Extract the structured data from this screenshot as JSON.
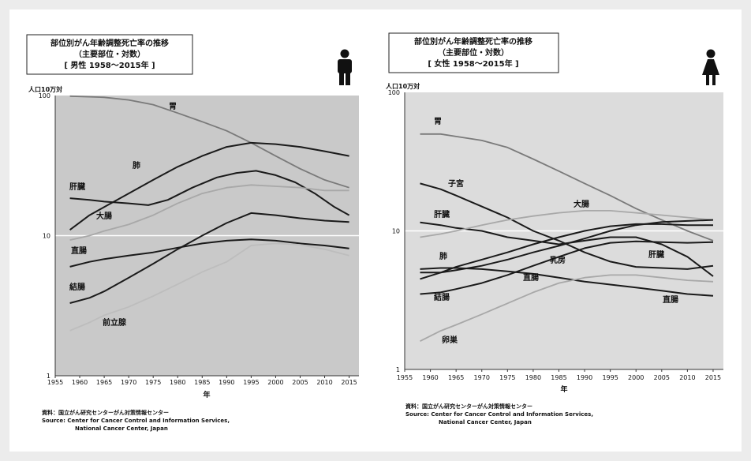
{
  "colors": {
    "plot_bg_male": "#c9c9c9",
    "plot_bg_female": "#dcdcdc",
    "dark": "#1a1a1a",
    "mid": "#7a7a7a",
    "light": "#a8a8a8",
    "pale": "#bdbdbd",
    "ref_line": "#ffffff"
  },
  "chart_data": [
    {
      "type": "line",
      "y_scale": "log",
      "title_lines": [
        "部位別がん年齢調整死亡率の推移",
        "（主要部位・対数）",
        "[ 男性 1958～2015年 ]"
      ],
      "ylabel": "人口10万対",
      "xlabel": "年",
      "xlim": [
        1955,
        2017
      ],
      "ylim": [
        1,
        100
      ],
      "xticks": [
        "1955",
        "1960",
        "1965",
        "1970",
        "1975",
        "1980",
        "1985",
        "1990",
        "1995",
        "2000",
        "2005",
        "2010",
        "2015"
      ],
      "yticks": [
        "1",
        "10",
        "100"
      ],
      "icon": "male-figure-icon",
      "source_lines": [
        "資料：国立がん研究センターがん対策情報センター",
        "Source: Center for Cancer Control and Information Services,",
        "National Cancer Center, Japan"
      ],
      "series": [
        {
          "name": "胃",
          "color": "#7a7a7a",
          "points": [
            [
              1958,
              99
            ],
            [
              1965,
              97
            ],
            [
              1970,
              93
            ],
            [
              1975,
              86
            ],
            [
              1980,
              75
            ],
            [
              1985,
              65
            ],
            [
              1990,
              56
            ],
            [
              1995,
              46
            ],
            [
              2000,
              37
            ],
            [
              2005,
              30
            ],
            [
              2010,
              25
            ],
            [
              2015,
              22
            ]
          ]
        },
        {
          "name": "肺",
          "color": "#1a1a1a",
          "points": [
            [
              1958,
              11
            ],
            [
              1962,
              14
            ],
            [
              1965,
              16
            ],
            [
              1970,
              20
            ],
            [
              1975,
              25
            ],
            [
              1980,
              31
            ],
            [
              1985,
              37
            ],
            [
              1990,
              43
            ],
            [
              1995,
              46
            ],
            [
              2000,
              45
            ],
            [
              2005,
              43
            ],
            [
              2010,
              40
            ],
            [
              2015,
              37
            ]
          ]
        },
        {
          "name": "肝臓",
          "color": "#1a1a1a",
          "points": [
            [
              1958,
              18.5
            ],
            [
              1962,
              18
            ],
            [
              1965,
              17.5
            ],
            [
              1970,
              17
            ],
            [
              1974,
              16.5
            ],
            [
              1978,
              18
            ],
            [
              1983,
              22
            ],
            [
              1988,
              26
            ],
            [
              1992,
              28
            ],
            [
              1996,
              29
            ],
            [
              2000,
              27
            ],
            [
              2004,
              24
            ],
            [
              2008,
              20
            ],
            [
              2012,
              16
            ],
            [
              2015,
              14
            ]
          ]
        },
        {
          "name": "大腸",
          "color": "#a8a8a8",
          "points": [
            [
              1958,
              9.3
            ],
            [
              1962,
              10
            ],
            [
              1965,
              10.8
            ],
            [
              1970,
              12
            ],
            [
              1975,
              14
            ],
            [
              1980,
              17
            ],
            [
              1985,
              20
            ],
            [
              1990,
              22
            ],
            [
              1995,
              23
            ],
            [
              2000,
              22.5
            ],
            [
              2005,
              22
            ],
            [
              2010,
              21
            ],
            [
              2015,
              21
            ]
          ]
        },
        {
          "name": "直腸",
          "color": "#1a1a1a",
          "points": [
            [
              1958,
              6
            ],
            [
              1962,
              6.5
            ],
            [
              1965,
              6.8
            ],
            [
              1970,
              7.2
            ],
            [
              1975,
              7.6
            ],
            [
              1980,
              8.2
            ],
            [
              1985,
              8.8
            ],
            [
              1990,
              9.2
            ],
            [
              1995,
              9.4
            ],
            [
              2000,
              9.2
            ],
            [
              2005,
              8.8
            ],
            [
              2010,
              8.5
            ],
            [
              2015,
              8.1
            ]
          ]
        },
        {
          "name": "結腸",
          "color": "#1a1a1a",
          "points": [
            [
              1958,
              3.3
            ],
            [
              1962,
              3.6
            ],
            [
              1965,
              4
            ],
            [
              1970,
              5
            ],
            [
              1975,
              6.3
            ],
            [
              1980,
              8
            ],
            [
              1985,
              10
            ],
            [
              1990,
              12.3
            ],
            [
              1995,
              14.5
            ],
            [
              2000,
              14
            ],
            [
              2005,
              13.3
            ],
            [
              2010,
              12.8
            ],
            [
              2015,
              12.5
            ]
          ]
        },
        {
          "name": "前立腺",
          "color": "#bdbdbd",
          "points": [
            [
              1958,
              2.1
            ],
            [
              1962,
              2.4
            ],
            [
              1965,
              2.7
            ],
            [
              1970,
              3.1
            ],
            [
              1975,
              3.7
            ],
            [
              1980,
              4.5
            ],
            [
              1985,
              5.5
            ],
            [
              1990,
              6.5
            ],
            [
              1995,
              8.5
            ],
            [
              2000,
              8.8
            ],
            [
              2005,
              8.6
            ],
            [
              2010,
              8
            ],
            [
              2015,
              7.2
            ]
          ]
        }
      ]
    },
    {
      "type": "line",
      "y_scale": "log",
      "title_lines": [
        "部位別がん年齢調整死亡率の推移",
        "（主要部位・対数）",
        "[ 女性 1958～2015年 ]"
      ],
      "ylabel": "人口10万対",
      "xlabel": "年",
      "xlim": [
        1955,
        2017
      ],
      "ylim": [
        1,
        100
      ],
      "xticks": [
        "1955",
        "1960",
        "1965",
        "1970",
        "1975",
        "1980",
        "1985",
        "1990",
        "1995",
        "2000",
        "2005",
        "2010",
        "2015"
      ],
      "yticks": [
        "1",
        "10",
        "100"
      ],
      "icon": "female-figure-icon",
      "source_lines": [
        "資料：国立がん研究センターがん対策情報センター",
        "Source: Center for Cancer Control and Information Services,",
        "National Cancer Center, Japan"
      ],
      "series": [
        {
          "name": "胃",
          "color": "#7a7a7a",
          "points": [
            [
              1958,
              50
            ],
            [
              1962,
              50
            ],
            [
              1965,
              48
            ],
            [
              1970,
              45
            ],
            [
              1975,
              40
            ],
            [
              1980,
              33
            ],
            [
              1985,
              27
            ],
            [
              1990,
              22
            ],
            [
              1995,
              18
            ],
            [
              2000,
              14.5
            ],
            [
              2005,
              12
            ],
            [
              2010,
              10
            ],
            [
              2015,
              8.5
            ]
          ]
        },
        {
          "name": "子宮",
          "color": "#1a1a1a",
          "points": [
            [
              1958,
              22
            ],
            [
              1962,
              20
            ],
            [
              1965,
              18
            ],
            [
              1970,
              15
            ],
            [
              1975,
              12.5
            ],
            [
              1980,
              10
            ],
            [
              1985,
              8.5
            ],
            [
              1990,
              7
            ],
            [
              1995,
              6
            ],
            [
              2000,
              5.5
            ],
            [
              2005,
              5.4
            ],
            [
              2010,
              5.3
            ],
            [
              2015,
              5.6
            ]
          ]
        },
        {
          "name": "肝臓",
          "color": "#1a1a1a",
          "points": [
            [
              1958,
              11.5
            ],
            [
              1962,
              11
            ],
            [
              1965,
              10.5
            ],
            [
              1970,
              10
            ],
            [
              1975,
              9
            ],
            [
              1980,
              8.5
            ],
            [
              1985,
              8
            ],
            [
              1990,
              8.5
            ],
            [
              1995,
              9
            ],
            [
              2000,
              9
            ],
            [
              2005,
              8
            ],
            [
              2010,
              6.5
            ],
            [
              2015,
              4.7
            ]
          ]
        },
        {
          "name": "大腸",
          "color": "#a8a8a8",
          "points": [
            [
              1958,
              9
            ],
            [
              1962,
              9.5
            ],
            [
              1965,
              10
            ],
            [
              1970,
              11
            ],
            [
              1975,
              12
            ],
            [
              1980,
              12.8
            ],
            [
              1985,
              13.5
            ],
            [
              1990,
              14
            ],
            [
              1995,
              14
            ],
            [
              2000,
              13.5
            ],
            [
              2005,
              13
            ],
            [
              2010,
              12.5
            ],
            [
              2015,
              12
            ]
          ]
        },
        {
          "name": "肺",
          "color": "#1a1a1a",
          "points": [
            [
              1958,
              4.5
            ],
            [
              1962,
              5
            ],
            [
              1965,
              5.5
            ],
            [
              1970,
              6.2
            ],
            [
              1975,
              7
            ],
            [
              1980,
              8
            ],
            [
              1985,
              9
            ],
            [
              1990,
              10
            ],
            [
              1995,
              10.8
            ],
            [
              2000,
              11.2
            ],
            [
              2005,
              11.2
            ],
            [
              2010,
              11
            ],
            [
              2015,
              11
            ]
          ]
        },
        {
          "name": "乳房",
          "color": "#1a1a1a",
          "points": [
            [
              1958,
              5
            ],
            [
              1962,
              5
            ],
            [
              1965,
              5.2
            ],
            [
              1970,
              5.6
            ],
            [
              1975,
              6.2
            ],
            [
              1980,
              7
            ],
            [
              1985,
              7.8
            ],
            [
              1990,
              8.8
            ],
            [
              1995,
              10
            ],
            [
              2000,
              11
            ],
            [
              2005,
              11.6
            ],
            [
              2010,
              11.8
            ],
            [
              2015,
              12
            ]
          ]
        },
        {
          "name": "直腸",
          "color": "#1a1a1a",
          "points": [
            [
              1958,
              5.3
            ],
            [
              1962,
              5.4
            ],
            [
              1965,
              5.4
            ],
            [
              1970,
              5.3
            ],
            [
              1975,
              5.1
            ],
            [
              1980,
              4.9
            ],
            [
              1985,
              4.6
            ],
            [
              1990,
              4.3
            ],
            [
              1995,
              4.1
            ],
            [
              2000,
              3.9
            ],
            [
              2005,
              3.7
            ],
            [
              2010,
              3.5
            ],
            [
              2015,
              3.4
            ]
          ]
        },
        {
          "name": "結腸",
          "color": "#1a1a1a",
          "points": [
            [
              1958,
              3.5
            ],
            [
              1962,
              3.6
            ],
            [
              1965,
              3.8
            ],
            [
              1970,
              4.2
            ],
            [
              1975,
              4.8
            ],
            [
              1980,
              5.6
            ],
            [
              1985,
              6.5
            ],
            [
              1990,
              7.5
            ],
            [
              1995,
              8.2
            ],
            [
              2000,
              8.4
            ],
            [
              2005,
              8.3
            ],
            [
              2010,
              8.2
            ],
            [
              2015,
              8.3
            ]
          ]
        },
        {
          "name": "卵巣",
          "color": "#a8a8a8",
          "points": [
            [
              1958,
              1.6
            ],
            [
              1962,
              1.9
            ],
            [
              1965,
              2.1
            ],
            [
              1970,
              2.5
            ],
            [
              1975,
              3
            ],
            [
              1980,
              3.6
            ],
            [
              1985,
              4.2
            ],
            [
              1990,
              4.6
            ],
            [
              1995,
              4.8
            ],
            [
              2000,
              4.8
            ],
            [
              2005,
              4.6
            ],
            [
              2010,
              4.4
            ],
            [
              2015,
              4.3
            ]
          ]
        }
      ]
    }
  ]
}
